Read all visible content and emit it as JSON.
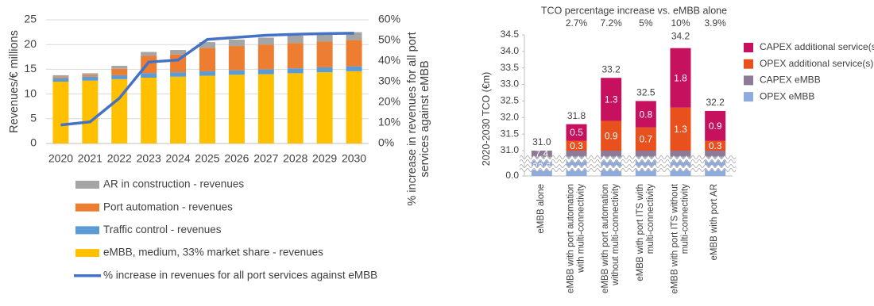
{
  "chart_data": [
    {
      "type": "stacked-bar-line",
      "categories": [
        "2020",
        "2021",
        "2022",
        "2023",
        "2024",
        "2025",
        "2026",
        "2027",
        "2028",
        "2029",
        "2030"
      ],
      "ylabel": "Revenues/€ millions",
      "y2label": "% increase in revenues for all port services against eMBB",
      "ylim": [
        0,
        25
      ],
      "yticks": [
        0,
        5,
        10,
        15,
        20,
        25
      ],
      "y2lim": [
        0,
        60
      ],
      "y2ticks": [
        {
          "value": 0,
          "label": "0%"
        },
        {
          "value": 10,
          "label": "10%"
        },
        {
          "value": 20,
          "label": "20%"
        },
        {
          "value": 30,
          "label": "30%"
        },
        {
          "value": 40,
          "label": "40%"
        },
        {
          "value": 50,
          "label": "50%"
        },
        {
          "value": 60,
          "label": "60%"
        }
      ],
      "grid": true,
      "series": [
        {
          "name": "eMBB, medium, 33% market share - revenues",
          "color": "#ffc000",
          "values": [
            12.5,
            12.7,
            13.0,
            13.3,
            13.5,
            13.7,
            13.9,
            14.0,
            14.2,
            14.4,
            14.6
          ]
        },
        {
          "name": "Traffic control - revenues",
          "color": "#5b9bd5",
          "values": [
            0.7,
            0.8,
            0.8,
            0.9,
            0.9,
            0.9,
            0.9,
            1.0,
            1.0,
            1.0,
            1.0
          ]
        },
        {
          "name": "Port automation - revenues",
          "color": "#ed7d31",
          "values": [
            0.2,
            0.3,
            1.3,
            3.5,
            3.6,
            4.7,
            4.9,
            5.0,
            5.1,
            5.2,
            5.3
          ]
        },
        {
          "name": "AR in construction - revenues",
          "color": "#a5a5a5",
          "values": [
            0.4,
            0.4,
            0.6,
            0.8,
            0.9,
            1.2,
            1.3,
            1.4,
            1.5,
            1.6,
            1.6
          ]
        },
        {
          "name": "% increase in revenues for all port services against eMBB",
          "color": "#4472c4",
          "type": "line",
          "axis": "y2",
          "values": [
            9,
            10.5,
            22,
            39.5,
            40.5,
            50.5,
            51.5,
            52.5,
            53,
            53.3,
            53.5
          ]
        }
      ]
    },
    {
      "type": "stacked-bar-broken",
      "title": "TCO percentage increase vs. eMBB alone",
      "ylabel": "2020-2030 TCO  (€m)",
      "categories": [
        "eMBB alone",
        "eMBB with port automation with multi-connectivity",
        "eMBB with port automation without multi-connectivity",
        "eMBB with port ITS with multi-connectivity",
        "eMBB with port ITS without multi-connectivity",
        "eMBB with port AR"
      ],
      "ylim": [
        0,
        34.5
      ],
      "axis_break_at": 31,
      "yticks": [
        {
          "value": 0,
          "label": "0.0"
        },
        {
          "value": 31,
          "label": "31.0"
        },
        31.5,
        {
          "value": 32,
          "label": "32.0"
        },
        32.5,
        {
          "value": 33,
          "label": "33.0"
        },
        33.5,
        {
          "value": 34,
          "label": "34.0"
        },
        34.5
      ],
      "series": [
        {
          "name": "OPEX eMBB",
          "color": "#8faadc",
          "values": [
            23.6,
            23.6,
            23.6,
            23.6,
            23.6,
            23.6
          ],
          "value_labels": [
            "23.6",
            null,
            null,
            null,
            null,
            null
          ]
        },
        {
          "name": "CAPEX eMBB",
          "color": "#8e7a96",
          "values": [
            7.4,
            7.4,
            7.4,
            7.4,
            7.4,
            7.4
          ],
          "value_labels": [
            "7.4",
            null,
            null,
            null,
            null,
            null
          ]
        },
        {
          "name": "OPEX additional service(s)",
          "color": "#e8501e",
          "values": [
            0,
            0.3,
            0.9,
            0.7,
            1.3,
            0.3
          ],
          "value_labels": [
            null,
            "0.3",
            "0.9",
            "0.7",
            "1.3",
            "0.3"
          ]
        },
        {
          "name": "CAPEX additional service(s)",
          "color": "#c5115e",
          "values": [
            0,
            0.5,
            1.3,
            0.8,
            1.8,
            0.9
          ],
          "value_labels": [
            null,
            "0.5",
            "1.3",
            "0.8",
            "1.8",
            "0.9"
          ]
        }
      ],
      "totals": {
        "values": [
          31.0,
          31.8,
          33.2,
          32.5,
          34.2,
          32.2
        ],
        "value_labels": [
          "31.0",
          "31.8",
          "33.2",
          "32.5",
          "34.2",
          "32.2"
        ]
      },
      "increase": {
        "values": [
          null,
          2.7,
          7.2,
          5,
          10,
          3.9
        ],
        "value_labels": [
          null,
          "2.7%",
          "7.2%",
          "5%",
          "10%",
          "3.9%"
        ]
      }
    }
  ]
}
